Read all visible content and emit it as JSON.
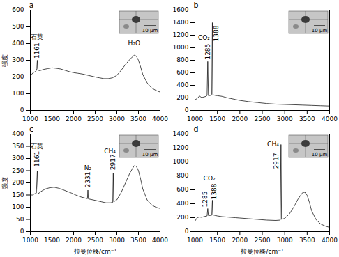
{
  "chart_data": [
    {
      "type": "line",
      "title": "a",
      "ylabel": "强度",
      "color": "#1a1a1a",
      "xlim": [
        1000,
        4000
      ],
      "xticks": [
        1000,
        1500,
        2000,
        2500,
        3000,
        3500,
        4000
      ],
      "ylim": [
        0,
        600
      ],
      "yticks": [
        0,
        100,
        200,
        300,
        400,
        500,
        600
      ],
      "x": [
        1000,
        1030,
        1060,
        1100,
        1130,
        1150,
        1161,
        1172,
        1200,
        1250,
        1300,
        1400,
        1500,
        1600,
        1700,
        1800,
        1900,
        2000,
        2100,
        2200,
        2300,
        2400,
        2500,
        2600,
        2700,
        2800,
        2900,
        3000,
        3100,
        3200,
        3300,
        3350,
        3400,
        3450,
        3500,
        3550,
        3600,
        3700,
        3800,
        3900,
        4000
      ],
      "values": [
        205,
        215,
        225,
        230,
        235,
        250,
        300,
        245,
        238,
        240,
        245,
        250,
        255,
        252,
        248,
        240,
        232,
        226,
        222,
        218,
        212,
        206,
        200,
        195,
        190,
        190,
        195,
        210,
        240,
        275,
        305,
        318,
        330,
        325,
        300,
        260,
        215,
        165,
        135,
        120,
        110
      ],
      "annotations": [
        {
          "text": "石英",
          "x": 1161,
          "y": 440
        },
        {
          "text": "1161",
          "x": 1161,
          "y": 310
        },
        {
          "text": "H₂O",
          "x": 3400,
          "y": 400
        }
      ],
      "inset_label": "10 μm"
    },
    {
      "type": "line",
      "title": "b",
      "color": "#1a1a1a",
      "xlim": [
        1000,
        4000
      ],
      "xticks": [
        1000,
        1500,
        2000,
        2500,
        3000,
        3500,
        4000
      ],
      "ylim": [
        0,
        1600
      ],
      "yticks": [
        0,
        200,
        400,
        600,
        800,
        1000,
        1200,
        1400,
        1600
      ],
      "x": [
        1000,
        1050,
        1100,
        1150,
        1200,
        1250,
        1270,
        1285,
        1300,
        1350,
        1375,
        1388,
        1400,
        1450,
        1500,
        1600,
        1700,
        1800,
        1900,
        2000,
        2200,
        2400,
        2600,
        2800,
        3000,
        3200,
        3400,
        3600,
        3800,
        4000
      ],
      "values": [
        170,
        190,
        230,
        205,
        215,
        225,
        240,
        780,
        235,
        240,
        260,
        1400,
        250,
        240,
        235,
        225,
        205,
        190,
        175,
        160,
        140,
        125,
        110,
        100,
        95,
        90,
        85,
        80,
        75,
        70
      ],
      "annotations": [
        {
          "text": "CO₂",
          "x": 1200,
          "y": 1160
        },
        {
          "text": "1285",
          "x": 1285,
          "y": 810
        },
        {
          "text": "1388",
          "x": 1480,
          "y": 1100
        }
      ],
      "inset_label": "10 μm"
    },
    {
      "type": "line",
      "title": "c",
      "ylabel": "强度",
      "xlabel": "拉曼位移/cm⁻¹",
      "color": "#1a1a1a",
      "xlim": [
        1000,
        4000
      ],
      "xticks": [
        1000,
        1500,
        2000,
        2500,
        3000,
        3500,
        4000
      ],
      "ylim": [
        0,
        400
      ],
      "yticks": [
        0,
        50,
        100,
        150,
        200,
        250,
        300,
        350,
        400
      ],
      "x": [
        1000,
        1050,
        1100,
        1140,
        1161,
        1180,
        1250,
        1350,
        1450,
        1550,
        1650,
        1750,
        1850,
        1950,
        2050,
        2150,
        2250,
        2320,
        2331,
        2342,
        2450,
        2550,
        2650,
        2750,
        2850,
        2905,
        2917,
        2929,
        3000,
        3100,
        3200,
        3300,
        3400,
        3450,
        3500,
        3550,
        3600,
        3700,
        3800,
        3900,
        4000
      ],
      "values": [
        150,
        150,
        155,
        158,
        250,
        155,
        165,
        175,
        180,
        182,
        178,
        172,
        165,
        158,
        150,
        143,
        138,
        135,
        170,
        134,
        130,
        126,
        122,
        118,
        118,
        120,
        240,
        122,
        130,
        160,
        200,
        240,
        270,
        268,
        250,
        215,
        175,
        130,
        110,
        100,
        95
      ],
      "annotations": [
        {
          "text": "石英",
          "x": 1161,
          "y": 350
        },
        {
          "text": "1161",
          "x": 1161,
          "y": 265
        },
        {
          "text": "N₂",
          "x": 2331,
          "y": 262
        },
        {
          "text": "2331",
          "x": 2331,
          "y": 180
        },
        {
          "text": "CH₄",
          "x": 2840,
          "y": 330
        },
        {
          "text": "2917",
          "x": 2917,
          "y": 252
        }
      ],
      "inset_label": "10 μm"
    },
    {
      "type": "line",
      "title": "d",
      "xlabel": "拉曼位移/cm⁻¹",
      "color": "#1a1a1a",
      "xlim": [
        1000,
        4000
      ],
      "xticks": [
        1000,
        1500,
        2000,
        2500,
        3000,
        3500,
        4000
      ],
      "ylim": [
        0,
        1400
      ],
      "yticks": [
        0,
        200,
        400,
        600,
        800,
        1000,
        1200,
        1400
      ],
      "x": [
        1000,
        1050,
        1100,
        1150,
        1200,
        1270,
        1285,
        1300,
        1375,
        1388,
        1400,
        1500,
        1600,
        1700,
        1800,
        1900,
        2000,
        2200,
        2400,
        2600,
        2800,
        2900,
        2917,
        2930,
        3000,
        3100,
        3200,
        3300,
        3400,
        3450,
        3500,
        3550,
        3600,
        3700,
        3800,
        3900,
        4000
      ],
      "values": [
        150,
        200,
        210,
        205,
        215,
        225,
        330,
        230,
        235,
        450,
        240,
        225,
        215,
        210,
        205,
        200,
        195,
        185,
        175,
        165,
        160,
        165,
        1250,
        175,
        190,
        250,
        350,
        470,
        560,
        565,
        520,
        420,
        300,
        170,
        110,
        80,
        60
      ],
      "annotations": [
        {
          "text": "CO₂",
          "x": 1320,
          "y": 760
        },
        {
          "text": "1285",
          "x": 1230,
          "y": 350
        },
        {
          "text": "1388",
          "x": 1430,
          "y": 460
        },
        {
          "text": "CH₄",
          "x": 2740,
          "y": 1250
        },
        {
          "text": "2917",
          "x": 2820,
          "y": 900
        }
      ],
      "inset_label": "10 μm"
    }
  ]
}
